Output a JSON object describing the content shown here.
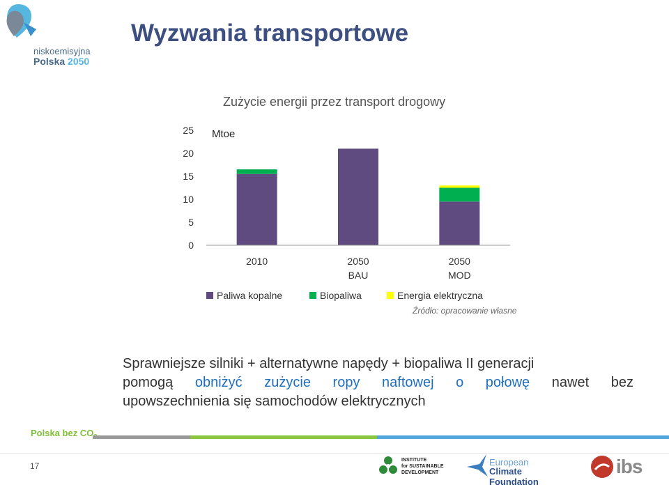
{
  "header": {
    "logo_line1": "niskoemisyjna",
    "logo_line2_a": "Polska ",
    "logo_line2_b": "2050",
    "title": "Wyzwania transportowe"
  },
  "chart_data": {
    "type": "bar",
    "stacked": true,
    "title": "Zużycie energii przez transport drogowy",
    "ylabel": "Mtoe",
    "ylim": [
      0,
      25
    ],
    "yticks": [
      0,
      5,
      10,
      15,
      20,
      25
    ],
    "categories": [
      [
        "2010"
      ],
      [
        "2050",
        "BAU"
      ],
      [
        "2050",
        "MOD"
      ]
    ],
    "series": [
      {
        "name": "Paliwa kopalne",
        "color": "#5f4b7f",
        "values": [
          15.5,
          21,
          9.5
        ]
      },
      {
        "name": "Biopaliwa",
        "color": "#00b050",
        "values": [
          1.0,
          0,
          3.0
        ]
      },
      {
        "name": "Energia elektryczna",
        "color": "#ffff00",
        "values": [
          0,
          0,
          0.5
        ]
      }
    ],
    "grid": false,
    "legend_position": "bottom",
    "source": "Źródło: opracowanie własne"
  },
  "body_text": {
    "line1": "Sprawniejsze silniki + alternatywne napędy + biopaliwa II generacji",
    "line2_words": [
      {
        "text": "pomogą",
        "highlight": false
      },
      {
        "text": "obniżyć",
        "highlight": true
      },
      {
        "text": "zużycie",
        "highlight": true
      },
      {
        "text": "ropy",
        "highlight": true
      },
      {
        "text": "naftowej",
        "highlight": true
      },
      {
        "text": "o",
        "highlight": true
      },
      {
        "text": "połowę",
        "highlight": true
      },
      {
        "text": "nawet",
        "highlight": false
      },
      {
        "text": "bez",
        "highlight": false
      }
    ],
    "line3": "upowszechnienia się samochodów elektrycznych",
    "highlight_color": "#1f6fbf"
  },
  "footer": {
    "brand_a": "Polska bez CO",
    "brand_sub": "2",
    "page_number": "17",
    "bar_colors": [
      "#999999",
      "#8cc63f",
      "#4fa7dc"
    ],
    "isd_lines": [
      "INSTITUTE",
      "for SUSTAINABLE",
      "DEVELOPMENT"
    ],
    "ecf_line1": "European",
    "ecf_line2": "Climate Foundation",
    "ibs_text": "ibs"
  }
}
